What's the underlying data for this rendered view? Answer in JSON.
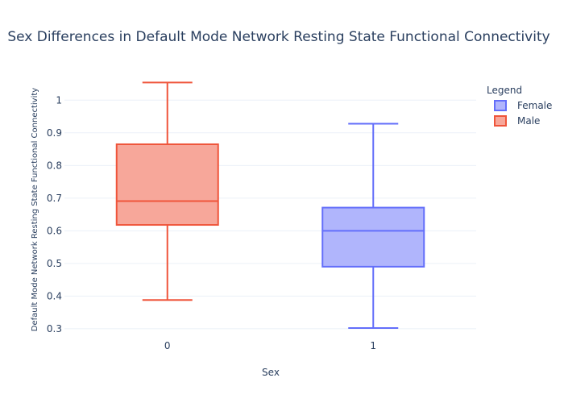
{
  "chart_data": {
    "type": "box",
    "title": "Sex Differences in Default Mode Network Resting State Functional Connectivity",
    "xlabel": "Sex",
    "ylabel": "Default Mode Network Resting State Functional Connectivity",
    "categories": [
      "0",
      "1"
    ],
    "ylim": [
      0.27,
      1.06
    ],
    "yticks": [
      0.3,
      0.4,
      0.5,
      0.6,
      0.7,
      0.8,
      0.9,
      1
    ],
    "ytick_labels": [
      "0.3",
      "0.4",
      "0.5",
      "0.6",
      "0.7",
      "0.8",
      "0.9",
      "1"
    ],
    "grid": true,
    "legend": {
      "title": "Legend",
      "placement": "top-right"
    },
    "series": [
      {
        "name": "Female",
        "category": "1",
        "min": 0.302,
        "q1": 0.49,
        "median": 0.6,
        "q3": 0.671,
        "max": 0.928,
        "line_color": "#636efa",
        "fill_color": "#b0b5fc"
      },
      {
        "name": "Male",
        "category": "0",
        "min": 0.388,
        "q1": 0.618,
        "median": 0.691,
        "q3": 0.865,
        "max": 1.054,
        "line_color": "#ef553b",
        "fill_color": "#f7a79a"
      }
    ]
  }
}
